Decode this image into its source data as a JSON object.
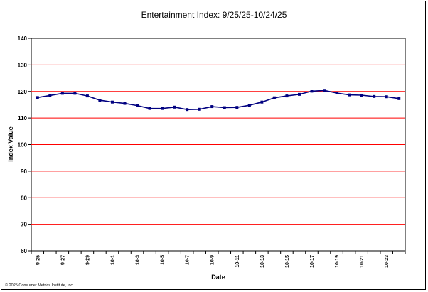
{
  "chart_data": {
    "type": "line",
    "title": "Entertainment Index: 9/25/25-10/24/25",
    "xlabel": "Date",
    "ylabel": "Index Value",
    "ylim": [
      60,
      140
    ],
    "yticks": [
      60,
      70,
      80,
      90,
      100,
      110,
      120,
      130,
      140
    ],
    "grid": true,
    "x": [
      "9-25",
      "9-26",
      "9-27",
      "9-28",
      "9-29",
      "9-30",
      "10-1",
      "10-2",
      "10-3",
      "10-4",
      "10-5",
      "10-6",
      "10-7",
      "10-8",
      "10-9",
      "10-10",
      "10-11",
      "10-12",
      "10-13",
      "10-14",
      "10-15",
      "10-16",
      "10-17",
      "10-18",
      "10-19",
      "10-20",
      "10-21",
      "10-22",
      "10-23",
      "10-24"
    ],
    "xtick_labels": [
      "9-25",
      "",
      "9-27",
      "",
      "9-29",
      "",
      "10-1",
      "",
      "10-3",
      "",
      "10-5",
      "",
      "10-7",
      "",
      "10-9",
      "",
      "10-11",
      "",
      "10-13",
      "",
      "10-15",
      "",
      "10-17",
      "",
      "10-19",
      "",
      "10-21",
      "",
      "10-23",
      ""
    ],
    "series": [
      {
        "values": [
          117.7,
          118.5,
          119.3,
          119.3,
          118.3,
          116.7,
          116.0,
          115.5,
          114.7,
          113.6,
          113.6,
          114.1,
          113.2,
          113.3,
          114.3,
          113.9,
          114.0,
          114.8,
          116.0,
          117.6,
          118.3,
          118.9,
          120.1,
          120.4,
          119.4,
          118.7,
          118.6,
          118.1,
          118.0,
          117.3
        ],
        "color": "#000080"
      }
    ],
    "colors": {
      "grid": "#ff0000",
      "line": "#000080",
      "marker": "#000080"
    }
  },
  "footer": "© 2025 Consumer Metrics Institute, Inc."
}
